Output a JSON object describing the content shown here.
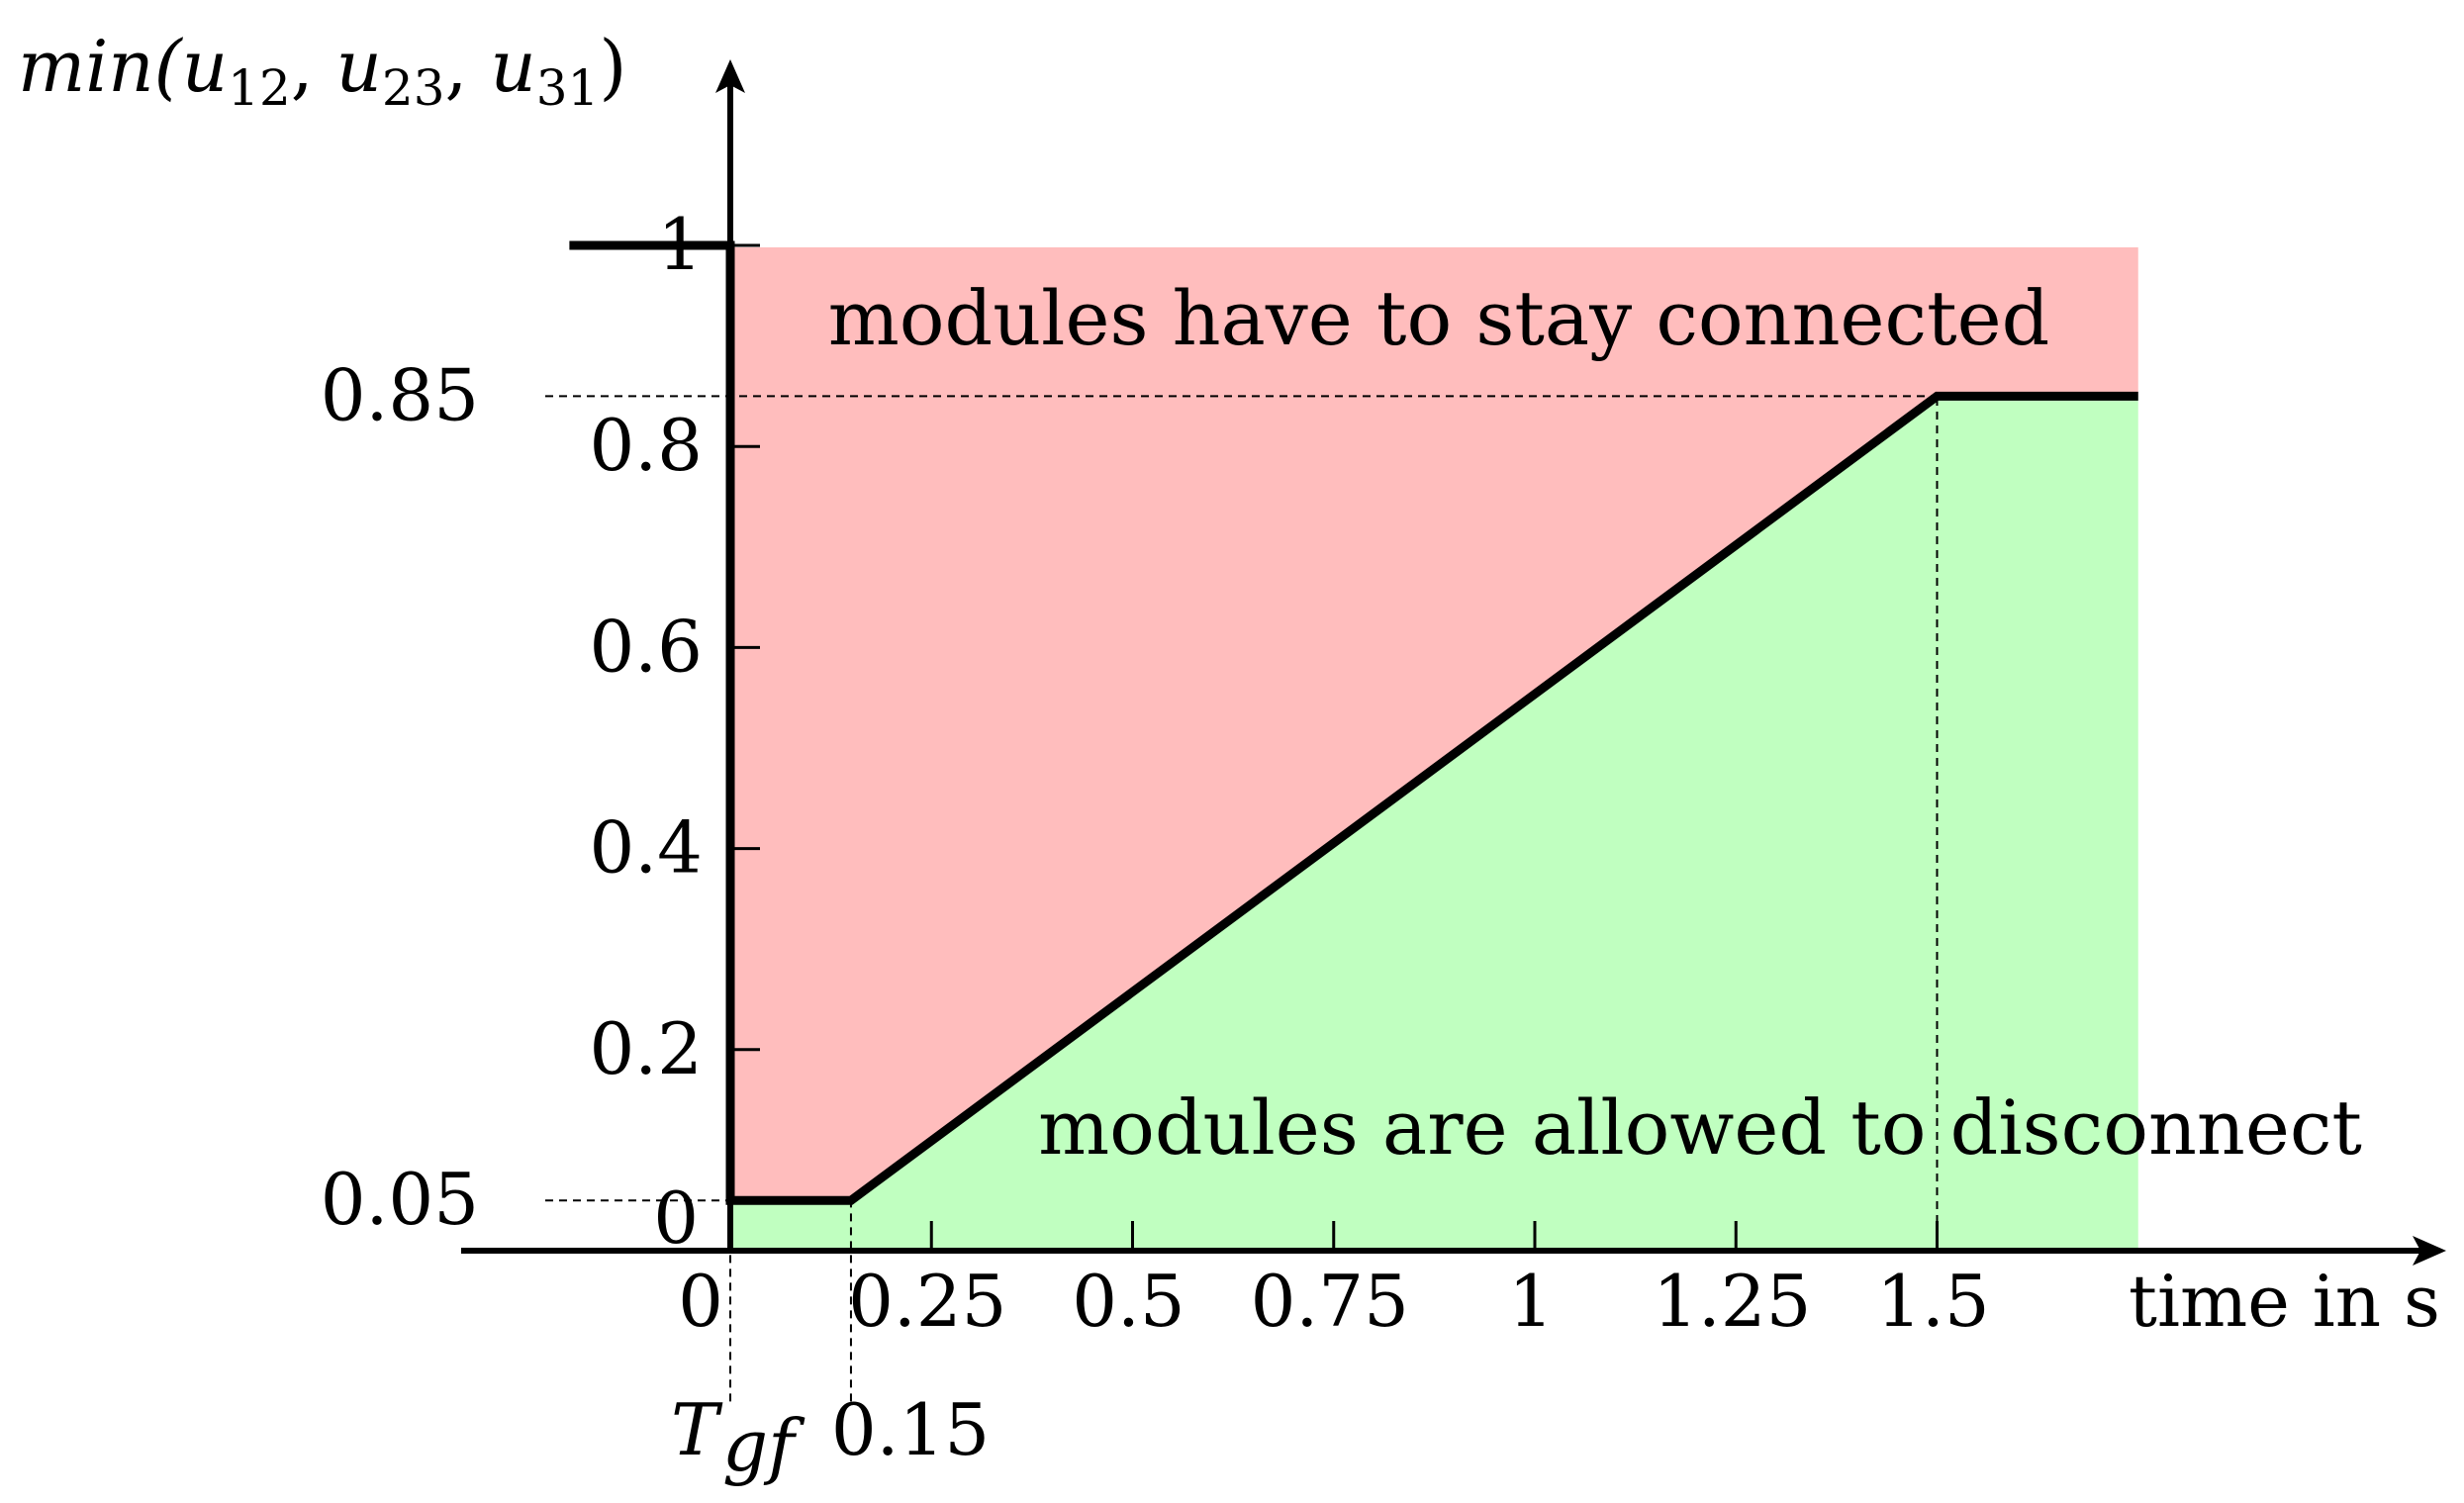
{
  "chart_data": {
    "type": "area",
    "title": "",
    "xlabel": "time in s",
    "ylabel": "min(u12, u23, u31)",
    "ylabel_parts": {
      "func": "min(",
      "u": "u",
      "sub12": "12",
      "sub23": "23",
      "sub31": "31",
      "sep": ", ",
      "close": ")"
    },
    "xlim": [
      0,
      1.75
    ],
    "ylim": [
      0,
      1
    ],
    "grid": false,
    "x_ticks": [
      {
        "value": 0,
        "label": "0"
      },
      {
        "value": 0.25,
        "label": "0.25"
      },
      {
        "value": 0.5,
        "label": "0.5"
      },
      {
        "value": 0.75,
        "label": "0.75"
      },
      {
        "value": 1,
        "label": "1"
      },
      {
        "value": 1.25,
        "label": "1.25"
      },
      {
        "value": 1.5,
        "label": "1.5"
      }
    ],
    "y_ticks": [
      {
        "value": 0,
        "label": "0"
      },
      {
        "value": 0.2,
        "label": "0.2"
      },
      {
        "value": 0.4,
        "label": "0.4"
      },
      {
        "value": 0.6,
        "label": "0.6"
      },
      {
        "value": 0.8,
        "label": "0.8"
      },
      {
        "value": 1,
        "label": "1"
      }
    ],
    "extra_y_labels": [
      {
        "value": 0.85,
        "label": "0.85"
      },
      {
        "value": 0.05,
        "label": "0.05"
      }
    ],
    "extra_x_labels": [
      {
        "value": 0,
        "label": "T",
        "sub": "gf"
      },
      {
        "value": 0.15,
        "label": "0.15"
      }
    ],
    "series": [
      {
        "x": [
          -0.2,
          0,
          0,
          0.15,
          1.5,
          1.75
        ],
        "y": [
          1,
          1,
          0.05,
          0.05,
          0.85,
          0.85
        ]
      }
    ],
    "regions": [
      {
        "label": "modules have to stay connected",
        "color": "#ffbdbd"
      },
      {
        "label": "modules are allowed to disconnect",
        "color": "#c0ffc0"
      }
    ],
    "reference_lines": [
      {
        "y": 0.85,
        "x_from": -0.23,
        "x_to": 1.5
      },
      {
        "y": 0.05,
        "x_from": -0.23,
        "x_to": 0.15
      },
      {
        "x": 1.5,
        "y_from": 0,
        "y_to": 0.85
      },
      {
        "x": 0,
        "y_from": -0.15,
        "y_to": 0
      },
      {
        "x": 0.15,
        "y_from": -0.15,
        "y_to": 0.05
      }
    ]
  }
}
